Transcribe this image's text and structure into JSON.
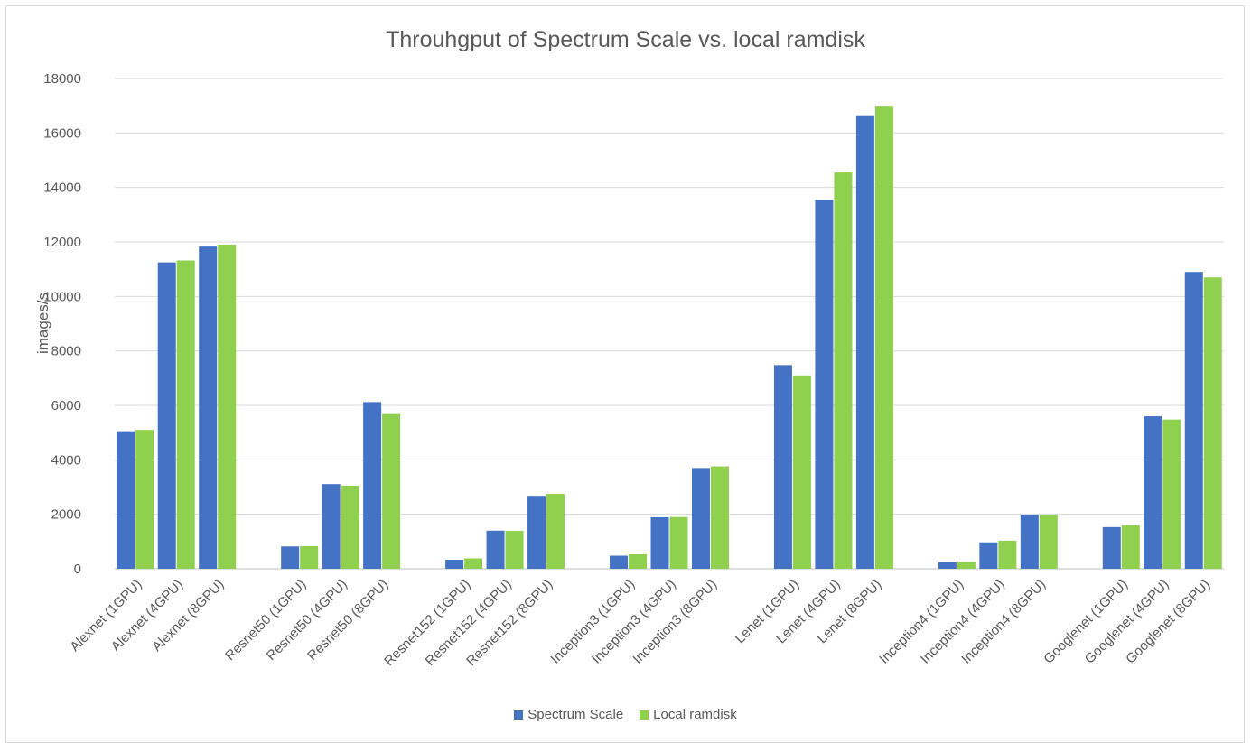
{
  "chart_data": {
    "type": "bar",
    "title": "Throuhgput of Spectrum Scale vs. local ramdisk",
    "xlabel": "",
    "ylabel": "images/s",
    "ylim": [
      0,
      18000
    ],
    "yticks": [
      "0",
      "2000",
      "4000",
      "6000",
      "8000",
      "10000",
      "12000",
      "14000",
      "16000",
      "18000"
    ],
    "grid": true,
    "legend_position": "bottom",
    "groups": [
      {
        "categories": [
          "Alexnet (1GPU)",
          "Alexnet (4GPU)",
          "Alexnet (8GPU)"
        ]
      },
      {
        "categories": [
          "Resnet50 (1GPU)",
          "Resnet50 (4GPU)",
          "Resnet50 (8GPU)"
        ]
      },
      {
        "categories": [
          "Resnet152 (1GPU)",
          "Resnet152 (4GPU)",
          "Resnet152 (8GPU)"
        ]
      },
      {
        "categories": [
          "Inception3 (1GPU)",
          "Inception3 (4GPU)",
          "Inception3 (8GPU)"
        ]
      },
      {
        "categories": [
          "Lenet (1GPU)",
          "Lenet (4GPU)",
          "Lenet (8GPU)"
        ]
      },
      {
        "categories": [
          "Inception4 (1GPU)",
          "Inception4 (4GPU)",
          "Inception4 (8GPU)"
        ]
      },
      {
        "categories": [
          "Googlenet (1GPU)",
          "Googlenet (4GPU)",
          "Googlenet (8GPU)"
        ]
      }
    ],
    "series": [
      {
        "name": "Spectrum Scale",
        "color": "#4472C4",
        "values": [
          5050,
          11250,
          11830,
          820,
          3110,
          6120,
          330,
          1400,
          2680,
          480,
          1890,
          3700,
          7480,
          13550,
          16650,
          240,
          970,
          1980,
          1530,
          5600,
          10900
        ]
      },
      {
        "name": "Local ramdisk",
        "color": "#8FD14F",
        "values": [
          5100,
          11320,
          11900,
          830,
          3050,
          5680,
          380,
          1390,
          2750,
          530,
          1900,
          3760,
          7100,
          14550,
          17000,
          250,
          1030,
          1980,
          1600,
          5480,
          10700
        ]
      }
    ]
  }
}
